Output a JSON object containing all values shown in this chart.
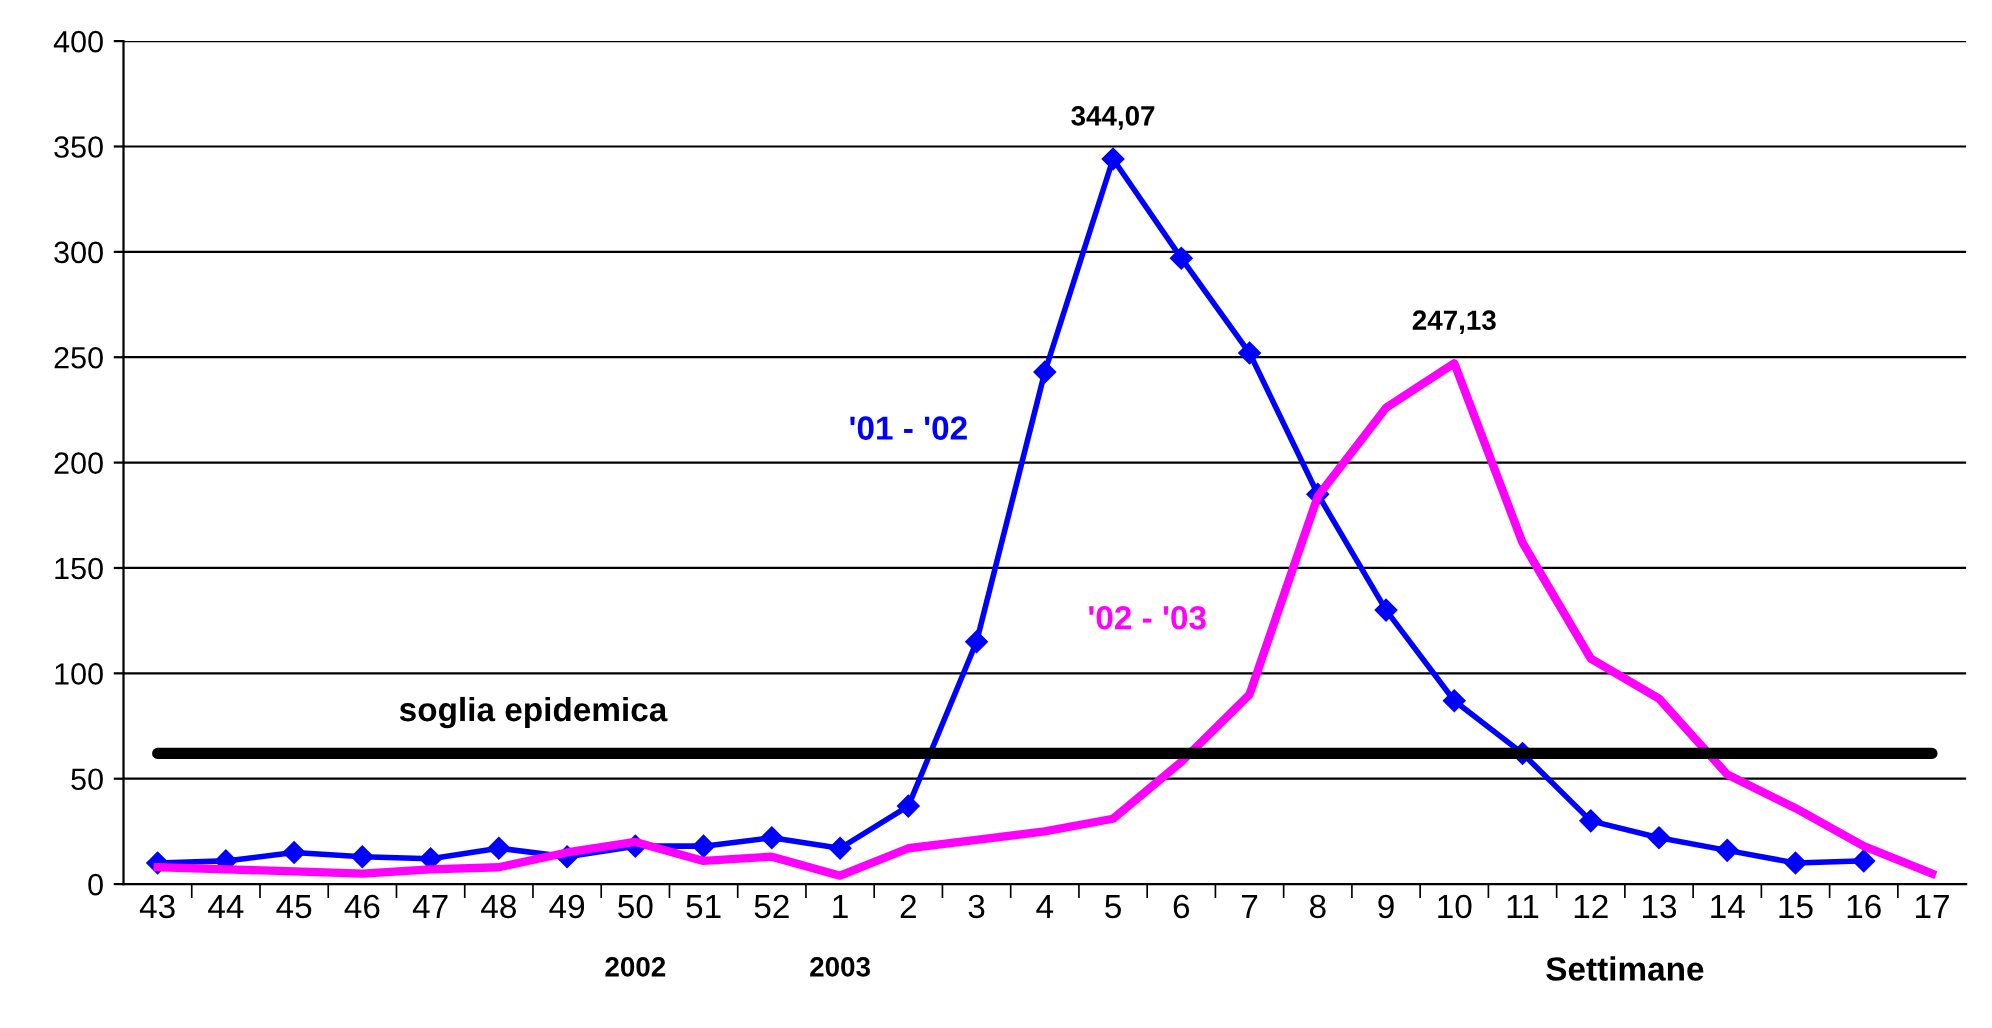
{
  "chart_data": {
    "type": "line",
    "xlabel": "Settimane",
    "categories": [
      "43",
      "44",
      "45",
      "46",
      "47",
      "48",
      "49",
      "50",
      "51",
      "52",
      "1",
      "2",
      "3",
      "4",
      "5",
      "6",
      "7",
      "8",
      "9",
      "10",
      "11",
      "12",
      "13",
      "14",
      "15",
      "16",
      "17"
    ],
    "series": [
      {
        "name": "'01 - '02",
        "color": "#0000ff",
        "marker": "diamond",
        "values": [
          10,
          11,
          15,
          13,
          12,
          17,
          13,
          18,
          18,
          22,
          17,
          37,
          115,
          243,
          344.07,
          297,
          252,
          185,
          130,
          87,
          62,
          30,
          22,
          16,
          10,
          11,
          null
        ],
        "value_labels": [
          null,
          null,
          null,
          null,
          null,
          null,
          null,
          null,
          null,
          null,
          null,
          null,
          null,
          null,
          "344,07",
          null,
          null,
          null,
          null,
          null,
          null,
          null,
          null,
          null,
          null,
          null,
          null
        ]
      },
      {
        "name": "'02 - '03",
        "color": "#ff00ff",
        "values": [
          8,
          7,
          6,
          5,
          7,
          8,
          15,
          20,
          11,
          13,
          4,
          17,
          21,
          25,
          31,
          58,
          90,
          184,
          226,
          247.13,
          162,
          107,
          88,
          52,
          36,
          18,
          5
        ],
        "value_labels": [
          null,
          null,
          null,
          null,
          null,
          null,
          null,
          null,
          null,
          null,
          null,
          null,
          null,
          null,
          null,
          null,
          null,
          null,
          null,
          "247,13",
          null,
          null,
          null,
          null,
          null,
          null,
          null
        ]
      }
    ],
    "ylim": [
      0,
      400
    ],
    "yticks": [
      0,
      50,
      100,
      150,
      200,
      250,
      300,
      350,
      400
    ],
    "grid": "y",
    "legend": false,
    "ref_lines": [
      {
        "axis": "y",
        "value": 62,
        "label": "soglia epidemica",
        "color": "#000000"
      }
    ],
    "annotations": [
      "2002",
      "2003"
    ]
  }
}
